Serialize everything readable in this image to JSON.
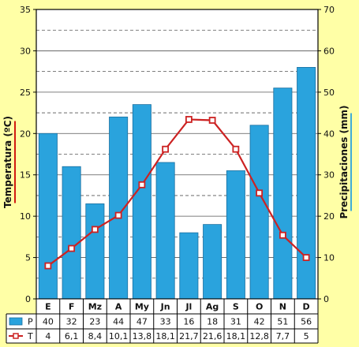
{
  "chart_data": {
    "type": "bar+line",
    "categories": [
      "E",
      "F",
      "Mz",
      "A",
      "My",
      "Jn",
      "Jl",
      "Ag",
      "S",
      "O",
      "N",
      "D"
    ],
    "series": [
      {
        "name": "P",
        "kind": "bar",
        "axis": "right",
        "values": [
          40,
          32,
          23,
          44,
          47,
          33,
          16,
          18,
          31,
          42,
          51,
          56
        ],
        "value_labels": [
          "40",
          "32",
          "23",
          "44",
          "47",
          "33",
          "16",
          "18",
          "31",
          "42",
          "51",
          "56"
        ],
        "color": "#2aa3dd"
      },
      {
        "name": "T",
        "kind": "line",
        "axis": "left",
        "values": [
          4,
          6.1,
          8.4,
          10.1,
          13.8,
          18.1,
          21.7,
          21.6,
          18.1,
          12.8,
          7.7,
          5
        ],
        "value_labels": [
          "4",
          "6,1",
          "8,4",
          "10,1",
          "13,8",
          "18,1",
          "21,7",
          "21,6",
          "18,1",
          "12,8",
          "7,7",
          "5"
        ],
        "color": "#cc2222"
      }
    ],
    "y_left": {
      "label": "Temperatura (ºC)",
      "range": [
        0,
        35
      ],
      "ticks": [
        0,
        5,
        10,
        15,
        20,
        25,
        30,
        35
      ],
      "label_color": "#cc0000"
    },
    "y_right": {
      "label": "Precipitaciones (mm)",
      "range": [
        0,
        70
      ],
      "ticks": [
        0,
        10,
        20,
        30,
        40,
        50,
        60,
        70
      ],
      "label_color": "#111111"
    },
    "gridlines": {
      "solid": [
        5,
        10,
        15,
        20,
        25,
        30
      ],
      "dashed": [
        2.5,
        7.5,
        12.5,
        17.5,
        22.5,
        27.5,
        32.5
      ]
    },
    "legend": "data-table-below",
    "colors": {
      "background": "#ffffa6",
      "plot_background": "#ffffff",
      "bar": "#2aa3dd",
      "bar_stroke": "#1a6fa0",
      "line": "#cc2222",
      "marker_fill": "#ffffff",
      "axis": "#000000",
      "left_accent": "#cc0000",
      "right_accent": "#2aa3dd"
    }
  }
}
